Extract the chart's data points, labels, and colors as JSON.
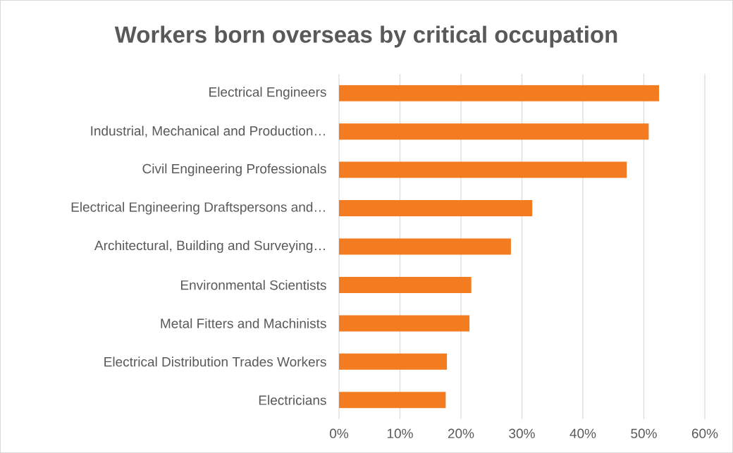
{
  "chart_data": {
    "type": "bar",
    "orientation": "horizontal",
    "title": "Workers born overseas by critical occupation",
    "categories": [
      "Electrical Engineers",
      "Industrial, Mechanical and Production…",
      "Civil Engineering Professionals",
      "Electrical Engineering Draftspersons and…",
      "Architectural, Building and Surveying…",
      "Environmental Scientists",
      "Metal Fitters and Machinists",
      "Electrical Distribution Trades Workers",
      "Electricians"
    ],
    "values": [
      52.5,
      50.8,
      47.2,
      31.7,
      28.2,
      21.7,
      21.4,
      17.7,
      17.5
    ],
    "color": "#f47c20",
    "xlim": [
      0,
      60
    ],
    "xticks": [
      {
        "value": 0,
        "label": "0%"
      },
      {
        "value": 10,
        "label": "10%"
      },
      {
        "value": 20,
        "label": "20%"
      },
      {
        "value": 30,
        "label": "30%"
      },
      {
        "value": 40,
        "label": "40%"
      },
      {
        "value": 50,
        "label": "50%"
      },
      {
        "value": 60,
        "label": "60%"
      }
    ],
    "grid": "x"
  }
}
